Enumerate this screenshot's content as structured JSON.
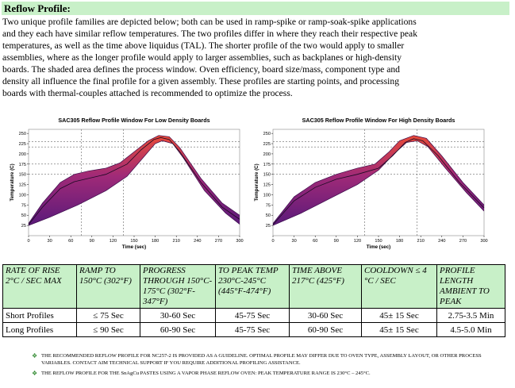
{
  "heading": "Reflow Profile:",
  "intro_lines": [
    "Two unique profile families are depicted below; both can be used in ramp-spike or ramp-soak-spike applications",
    "and they each have similar reflow temperatures.  The two profiles differ in where they reach their respective peak",
    "temperatures, as well as the time above liquidus (TAL).  The shorter profile of the two would apply to smaller",
    "assemblies, where as the longer profile would apply to larger assemblies, such as backplanes or high-density",
    "boards.  The shaded area defines the process window.  Oven efficiency, board size/mass, component type and",
    "density all influence the final profile for a given assembly.  These profiles are starting points, and processing",
    "boards with thermal-couples attached is recommended to optimize the process."
  ],
  "chart_data": [
    {
      "type": "area",
      "title": "SAC305 Reflow Profile Window For Low Density Boards",
      "xlabel": "Time (sec)",
      "ylabel": "Temperature (C)",
      "xlim": [
        0,
        300
      ],
      "ylim": [
        0,
        260
      ],
      "xticks": [
        0,
        30,
        60,
        90,
        120,
        150,
        180,
        210,
        240,
        270,
        300
      ],
      "yticks": [
        25,
        50,
        75,
        100,
        125,
        150,
        175,
        200,
        225,
        250
      ],
      "grid_y": [
        150,
        175,
        217,
        230
      ],
      "grid_x": [
        75,
        135
      ],
      "upper": [
        [
          0,
          30
        ],
        [
          20,
          80
        ],
        [
          45,
          130
        ],
        [
          65,
          150
        ],
        [
          85,
          158
        ],
        [
          110,
          165
        ],
        [
          130,
          178
        ],
        [
          150,
          205
        ],
        [
          170,
          232
        ],
        [
          185,
          245
        ],
        [
          200,
          242
        ],
        [
          215,
          215
        ],
        [
          245,
          140
        ],
        [
          275,
          80
        ],
        [
          300,
          50
        ]
      ],
      "lower": [
        [
          0,
          25
        ],
        [
          30,
          45
        ],
        [
          70,
          75
        ],
        [
          110,
          110
        ],
        [
          140,
          145
        ],
        [
          165,
          195
        ],
        [
          180,
          225
        ],
        [
          190,
          232
        ],
        [
          205,
          225
        ],
        [
          220,
          190
        ],
        [
          250,
          110
        ],
        [
          280,
          55
        ],
        [
          300,
          28
        ]
      ],
      "series": [
        {
          "name": "",
          "points": [
            [
              0,
              27
            ],
            [
              20,
              70
            ],
            [
              45,
              115
            ],
            [
              65,
              132
            ],
            [
              85,
              140
            ],
            [
              110,
              150
            ],
            [
              140,
              175
            ],
            [
              160,
              210
            ],
            [
              178,
              235
            ],
            [
              188,
              240
            ],
            [
              200,
              235
            ],
            [
              215,
              205
            ],
            [
              245,
              130
            ],
            [
              275,
              70
            ],
            [
              300,
              40
            ]
          ]
        }
      ]
    },
    {
      "type": "area",
      "title": "SAC305 Reflow Profile Window For High Density Boards",
      "xlabel": "Time (sec)",
      "ylabel": "Temperature (C)",
      "xlim": [
        0,
        300
      ],
      "ylim": [
        0,
        260
      ],
      "xticks": [
        0,
        30,
        60,
        90,
        120,
        150,
        180,
        210,
        240,
        270,
        300
      ],
      "yticks": [
        25,
        50,
        75,
        100,
        125,
        150,
        175,
        200,
        225,
        250
      ],
      "grid_y": [
        150,
        175,
        217,
        230
      ],
      "grid_x": [
        130,
        205
      ],
      "upper": [
        [
          0,
          30
        ],
        [
          30,
          95
        ],
        [
          60,
          130
        ],
        [
          90,
          150
        ],
        [
          120,
          165
        ],
        [
          145,
          175
        ],
        [
          165,
          205
        ],
        [
          180,
          232
        ],
        [
          200,
          245
        ],
        [
          218,
          238
        ],
        [
          240,
          195
        ],
        [
          270,
          130
        ],
        [
          300,
          75
        ]
      ],
      "lower": [
        [
          0,
          25
        ],
        [
          40,
          55
        ],
        [
          80,
          90
        ],
        [
          120,
          125
        ],
        [
          150,
          160
        ],
        [
          172,
          200
        ],
        [
          190,
          228
        ],
        [
          205,
          232
        ],
        [
          220,
          218
        ],
        [
          245,
          165
        ],
        [
          275,
          105
        ],
        [
          300,
          60
        ]
      ],
      "series": [
        {
          "name": "",
          "points": [
            [
              0,
              27
            ],
            [
              30,
              85
            ],
            [
              60,
              118
            ],
            [
              90,
              138
            ],
            [
              120,
              150
            ],
            [
              150,
              165
            ],
            [
              170,
              195
            ],
            [
              188,
              228
            ],
            [
              200,
              237
            ],
            [
              213,
              232
            ],
            [
              235,
              195
            ],
            [
              265,
              130
            ],
            [
              300,
              68
            ]
          ]
        }
      ]
    }
  ],
  "table": {
    "headers": [
      "RATE OF RISE 2°C / SEC MAX",
      "RAMP TO 150°C (302°F)",
      "PROGRESS THROUGH 150°C-175°C (302°F-347°F)",
      "TO PEAK TEMP 230°C-245°C (445°F-474°F)",
      "TIME ABOVE 217°C (425°F)",
      "COOLDOWN ≤ 4 °C / SEC",
      "PROFILE LENGTH AMBIENT TO PEAK"
    ],
    "rows": [
      [
        "Short Profiles",
        "≤ 75 Sec",
        "30-60 Sec",
        "45-75 Sec",
        "30-60 Sec",
        "45± 15 Sec",
        "2.75-3.5 Min"
      ],
      [
        "Long Profiles",
        "≤ 90 Sec",
        "60-90 Sec",
        "45-75 Sec",
        "60-90 Sec",
        "45± 15 Sec",
        "4.5-5.0 Min"
      ]
    ]
  },
  "notes": [
    "THE RECOMMENDED REFLOW PROFILE FOR NC257-2 IS PROVIDED AS A GUIDELINE. OPTIMAL PROFILE MAY DIFFER DUE TO OVEN TYPE, ASSEMBLY LAYOUT, OR OTHER PROCESS VARIABLES. CONTACT AIM TECHNICAL SUPPORT IF YOU REQUIRE ADDITIONAL PROFILING ASSISTANCE.",
    "THE REFLOW PROFILE FOR THE SnAgCu PASTES USING A VAPOR PHASE REFLOW OVEN: PEAK TEMPERATURE RANGE IS 230°C – 245°C."
  ],
  "colors": {
    "header_green": "#c8f0c8",
    "bullet_green": "#3a8f3a",
    "band_low": "#5a1a7a",
    "band_high": "#e84a38"
  }
}
